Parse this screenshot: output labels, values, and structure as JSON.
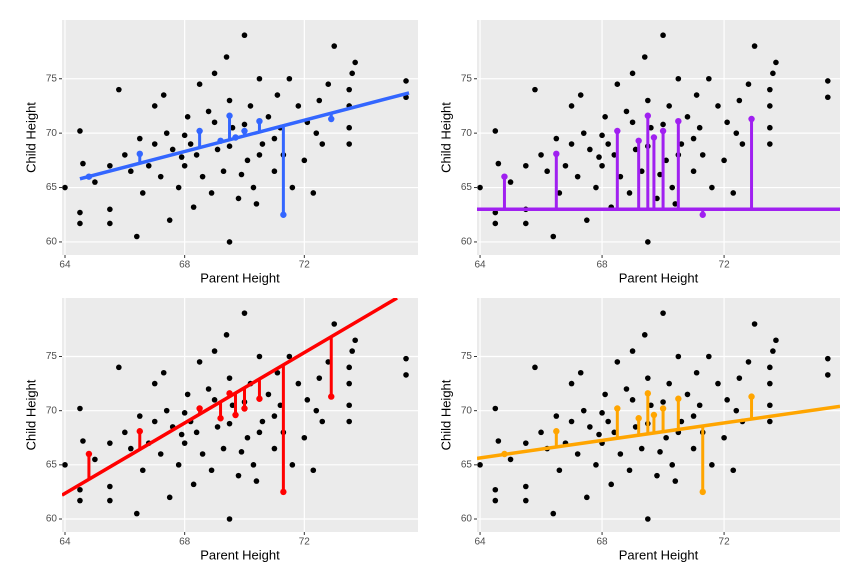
{
  "chart_data": [
    {
      "type": "scatter",
      "xlabel": "Parent Height",
      "ylabel": "Child Height",
      "xlim": [
        63.9,
        75.8
      ],
      "ylim": [
        58.8,
        80.4
      ],
      "xticks": [
        64,
        68,
        72
      ],
      "yticks": [
        60,
        65,
        70,
        75
      ],
      "grid": true,
      "color": "#000000",
      "x": [
        64.5,
        64.5,
        64.5,
        64.0,
        64.6,
        65.0,
        65.5,
        65.5,
        65.8,
        66.2,
        66.4,
        66.5,
        66.6,
        66.0,
        67.0,
        67.2,
        67.4,
        67.5,
        67.6,
        67.8,
        67.3,
        68.0,
        68.1,
        68.3,
        68.5,
        68.6,
        68.2,
        68.8,
        68.9,
        69.0,
        69.1,
        69.3,
        69.5,
        69.5,
        69.6,
        69.8,
        69.4,
        70.0,
        70.1,
        70.2,
        70.3,
        70.5,
        70.6,
        70.4,
        70.8,
        71.0,
        71.1,
        71.3,
        71.5,
        71.6,
        71.2,
        71.8,
        72.0,
        72.1,
        72.3,
        72.5,
        72.6,
        72.8,
        73.0,
        73.5,
        73.6,
        73.5,
        73.7,
        73.5,
        75.4,
        75.4,
        68.0,
        69.5,
        70.0,
        66.8,
        67.9,
        69.9,
        70.5,
        71.0,
        65.5,
        68.4,
        69.0,
        72.4,
        73.5,
        67.0
      ],
      "values": [
        61.7,
        62.7,
        70.2,
        65.0,
        67.2,
        65.5,
        61.7,
        63.0,
        74.0,
        66.5,
        60.5,
        69.5,
        64.5,
        68.0,
        72.5,
        66.0,
        70.0,
        62.0,
        68.5,
        65.0,
        73.5,
        67.0,
        71.5,
        63.2,
        74.5,
        66.0,
        69.0,
        72.0,
        64.5,
        75.5,
        68.5,
        66.5,
        73.0,
        60.0,
        70.5,
        64.0,
        77.0,
        79.0,
        67.5,
        72.5,
        65.0,
        75.0,
        69.0,
        63.5,
        71.5,
        66.5,
        73.5,
        68.0,
        75.0,
        65.0,
        70.5,
        72.5,
        67.5,
        71.0,
        64.5,
        73.0,
        69.0,
        74.5,
        78.0,
        72.5,
        75.5,
        69.0,
        76.5,
        70.5,
        74.8,
        73.3,
        69.8,
        68.8,
        70.8,
        67.0,
        67.8,
        66.2,
        68.0,
        69.5,
        67.0,
        68.0,
        71.0,
        70.0,
        74.0,
        69.0
      ],
      "highlight": {
        "x": [
          64.8,
          66.5,
          68.5,
          69.2,
          69.5,
          69.7,
          70.0,
          70.5,
          71.3,
          72.9
        ],
        "values": [
          66.0,
          68.1,
          70.2,
          69.3,
          71.6,
          69.6,
          70.2,
          71.1,
          62.5,
          71.3
        ]
      },
      "fit_line": {
        "x": [
          64.5,
          75.5
        ],
        "values": [
          65.8,
          73.7
        ],
        "color": "#3366ff"
      }
    },
    {
      "type": "scatter",
      "xlabel": "Parent Height",
      "ylabel": "Child Height",
      "xlim": [
        63.9,
        75.8
      ],
      "ylim": [
        58.8,
        80.4
      ],
      "xticks": [
        64,
        68,
        72
      ],
      "yticks": [
        60,
        65,
        70,
        75
      ],
      "grid": true,
      "color": "#000000",
      "x": [
        64.5,
        64.5,
        64.5,
        64.0,
        64.6,
        65.0,
        65.5,
        65.5,
        65.8,
        66.2,
        66.4,
        66.5,
        66.6,
        66.0,
        67.0,
        67.2,
        67.4,
        67.5,
        67.6,
        67.8,
        67.3,
        68.0,
        68.1,
        68.3,
        68.5,
        68.6,
        68.2,
        68.8,
        68.9,
        69.0,
        69.1,
        69.3,
        69.5,
        69.5,
        69.6,
        69.8,
        69.4,
        70.0,
        70.1,
        70.2,
        70.3,
        70.5,
        70.6,
        70.4,
        70.8,
        71.0,
        71.1,
        71.3,
        71.5,
        71.6,
        71.2,
        71.8,
        72.0,
        72.1,
        72.3,
        72.5,
        72.6,
        72.8,
        73.0,
        73.5,
        73.6,
        73.5,
        73.7,
        73.5,
        75.4,
        75.4,
        68.0,
        69.5,
        70.0,
        66.8,
        67.9,
        69.9,
        70.5,
        71.0,
        65.5,
        68.4,
        69.0,
        72.4,
        73.5,
        67.0
      ],
      "values": [
        61.7,
        62.7,
        70.2,
        65.0,
        67.2,
        65.5,
        61.7,
        63.0,
        74.0,
        66.5,
        60.5,
        69.5,
        64.5,
        68.0,
        72.5,
        66.0,
        70.0,
        62.0,
        68.5,
        65.0,
        73.5,
        67.0,
        71.5,
        63.2,
        74.5,
        66.0,
        69.0,
        72.0,
        64.5,
        75.5,
        68.5,
        66.5,
        73.0,
        60.0,
        70.5,
        64.0,
        77.0,
        79.0,
        67.5,
        72.5,
        65.0,
        75.0,
        69.0,
        63.5,
        71.5,
        66.5,
        73.5,
        68.0,
        75.0,
        65.0,
        70.5,
        72.5,
        67.5,
        71.0,
        64.5,
        73.0,
        69.0,
        74.5,
        78.0,
        72.5,
        75.5,
        69.0,
        76.5,
        70.5,
        74.8,
        73.3,
        69.8,
        68.8,
        70.8,
        67.0,
        67.8,
        66.2,
        68.0,
        69.5,
        67.0,
        68.0,
        71.0,
        70.0,
        74.0,
        69.0
      ],
      "highlight": {
        "x": [
          64.8,
          66.5,
          68.5,
          69.2,
          69.5,
          69.7,
          70.0,
          70.5,
          71.3,
          72.9
        ],
        "values": [
          66.0,
          68.1,
          70.2,
          69.3,
          71.6,
          69.6,
          70.2,
          71.1,
          62.5,
          71.3
        ]
      },
      "fit_line": {
        "x": [
          63.9,
          75.8
        ],
        "values": [
          63.0,
          63.0
        ],
        "color": "#a020f0"
      }
    },
    {
      "type": "scatter",
      "xlabel": "Parent Height",
      "ylabel": "Child Height",
      "xlim": [
        63.9,
        75.8
      ],
      "ylim": [
        58.8,
        80.4
      ],
      "xticks": [
        64,
        68,
        72
      ],
      "yticks": [
        60,
        65,
        70,
        75
      ],
      "grid": true,
      "color": "#000000",
      "x": [
        64.5,
        64.5,
        64.5,
        64.0,
        64.6,
        65.0,
        65.5,
        65.5,
        65.8,
        66.2,
        66.4,
        66.5,
        66.6,
        66.0,
        67.0,
        67.2,
        67.4,
        67.5,
        67.6,
        67.8,
        67.3,
        68.0,
        68.1,
        68.3,
        68.5,
        68.6,
        68.2,
        68.8,
        68.9,
        69.0,
        69.1,
        69.3,
        69.5,
        69.5,
        69.6,
        69.8,
        69.4,
        70.0,
        70.1,
        70.2,
        70.3,
        70.5,
        70.6,
        70.4,
        70.8,
        71.0,
        71.1,
        71.3,
        71.5,
        71.6,
        71.2,
        71.8,
        72.0,
        72.1,
        72.3,
        72.5,
        72.6,
        72.8,
        73.0,
        73.5,
        73.6,
        73.5,
        73.7,
        73.5,
        75.4,
        75.4,
        68.0,
        69.5,
        70.0,
        66.8,
        67.9,
        69.9,
        70.5,
        71.0,
        65.5,
        68.4,
        69.0,
        72.4,
        73.5,
        67.0
      ],
      "values": [
        61.7,
        62.7,
        70.2,
        65.0,
        67.2,
        65.5,
        61.7,
        63.0,
        74.0,
        66.5,
        60.5,
        69.5,
        64.5,
        68.0,
        72.5,
        66.0,
        70.0,
        62.0,
        68.5,
        65.0,
        73.5,
        67.0,
        71.5,
        63.2,
        74.5,
        66.0,
        69.0,
        72.0,
        64.5,
        75.5,
        68.5,
        66.5,
        73.0,
        60.0,
        70.5,
        64.0,
        77.0,
        79.0,
        67.5,
        72.5,
        65.0,
        75.0,
        69.0,
        63.5,
        71.5,
        66.5,
        73.5,
        68.0,
        75.0,
        65.0,
        70.5,
        72.5,
        67.5,
        71.0,
        64.5,
        73.0,
        69.0,
        74.5,
        78.0,
        72.5,
        75.5,
        69.0,
        76.5,
        70.5,
        74.8,
        73.3,
        69.8,
        68.8,
        70.8,
        67.0,
        67.8,
        66.2,
        68.0,
        69.5,
        67.0,
        68.0,
        71.0,
        70.0,
        74.0,
        69.0
      ],
      "highlight": {
        "x": [
          64.8,
          66.5,
          68.5,
          69.2,
          69.5,
          69.7,
          70.0,
          70.5,
          71.3,
          72.9
        ],
        "values": [
          66.0,
          68.1,
          70.2,
          69.3,
          71.6,
          69.6,
          70.2,
          71.1,
          62.5,
          71.3
        ]
      },
      "fit_line": {
        "x": [
          63.9,
          75.1
        ],
        "values": [
          62.2,
          80.4
        ],
        "color": "#ff0000"
      }
    },
    {
      "type": "scatter",
      "xlabel": "Parent Height",
      "ylabel": "Child Height",
      "xlim": [
        63.9,
        75.8
      ],
      "ylim": [
        58.8,
        80.4
      ],
      "xticks": [
        64,
        68,
        72
      ],
      "yticks": [
        60,
        65,
        70,
        75
      ],
      "grid": true,
      "color": "#000000",
      "x": [
        64.5,
        64.5,
        64.5,
        64.0,
        64.6,
        65.0,
        65.5,
        65.5,
        65.8,
        66.2,
        66.4,
        66.5,
        66.6,
        66.0,
        67.0,
        67.2,
        67.4,
        67.5,
        67.6,
        67.8,
        67.3,
        68.0,
        68.1,
        68.3,
        68.5,
        68.6,
        68.2,
        68.8,
        68.9,
        69.0,
        69.1,
        69.3,
        69.5,
        69.5,
        69.6,
        69.8,
        69.4,
        70.0,
        70.1,
        70.2,
        70.3,
        70.5,
        70.6,
        70.4,
        70.8,
        71.0,
        71.1,
        71.3,
        71.5,
        71.6,
        71.2,
        71.8,
        72.0,
        72.1,
        72.3,
        72.5,
        72.6,
        72.8,
        73.0,
        73.5,
        73.6,
        73.5,
        73.7,
        73.5,
        75.4,
        75.4,
        68.0,
        69.5,
        70.0,
        66.8,
        67.9,
        69.9,
        70.5,
        71.0,
        65.5,
        68.4,
        69.0,
        72.4,
        73.5,
        67.0
      ],
      "values": [
        61.7,
        62.7,
        70.2,
        65.0,
        67.2,
        65.5,
        61.7,
        63.0,
        74.0,
        66.5,
        60.5,
        69.5,
        64.5,
        68.0,
        72.5,
        66.0,
        70.0,
        62.0,
        68.5,
        65.0,
        73.5,
        67.0,
        71.5,
        63.2,
        74.5,
        66.0,
        69.0,
        72.0,
        64.5,
        75.5,
        68.5,
        66.5,
        73.0,
        60.0,
        70.5,
        64.0,
        77.0,
        79.0,
        67.5,
        72.5,
        65.0,
        75.0,
        69.0,
        63.5,
        71.5,
        66.5,
        73.5,
        68.0,
        75.0,
        65.0,
        70.5,
        72.5,
        67.5,
        71.0,
        64.5,
        73.0,
        69.0,
        74.5,
        78.0,
        72.5,
        75.5,
        69.0,
        76.5,
        70.5,
        74.8,
        73.3,
        69.8,
        68.8,
        70.8,
        67.0,
        67.8,
        66.2,
        68.0,
        69.5,
        67.0,
        68.0,
        71.0,
        70.0,
        74.0,
        69.0
      ],
      "highlight": {
        "x": [
          64.8,
          66.5,
          68.5,
          69.2,
          69.5,
          69.7,
          70.0,
          70.5,
          71.3,
          72.9
        ],
        "values": [
          66.0,
          68.1,
          70.2,
          69.3,
          71.6,
          69.6,
          70.2,
          71.1,
          62.5,
          71.3
        ]
      },
      "fit_line": {
        "x": [
          63.9,
          75.8
        ],
        "values": [
          65.6,
          70.4
        ],
        "color": "#ffa500"
      }
    }
  ]
}
